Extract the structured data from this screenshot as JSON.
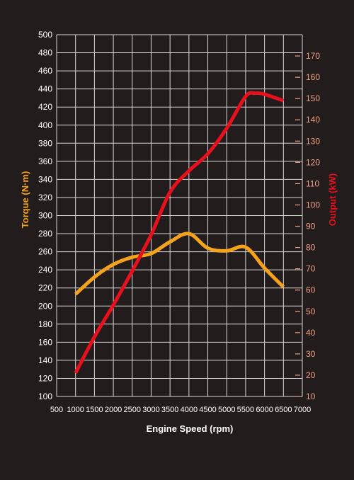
{
  "chart_data": {
    "type": "line",
    "xlabel": "Engine Speed (rpm)",
    "ylabel_left": "Torque (N·m)",
    "ylabel_right": "Output (kW)",
    "xlim": [
      500,
      7000
    ],
    "ylim_left": [
      100,
      500
    ],
    "ylim_right": [
      10,
      180
    ],
    "x_ticks": [
      500,
      1000,
      1500,
      2000,
      2500,
      3000,
      3500,
      4000,
      4500,
      5000,
      5500,
      6000,
      6500,
      7000
    ],
    "y_ticks_left": [
      100,
      120,
      140,
      160,
      180,
      200,
      220,
      240,
      260,
      280,
      300,
      320,
      340,
      360,
      380,
      400,
      420,
      440,
      460,
      480,
      500
    ],
    "y_ticks_right": [
      10,
      20,
      30,
      40,
      50,
      60,
      70,
      80,
      90,
      100,
      110,
      120,
      130,
      140,
      150,
      160,
      170
    ],
    "grid": true,
    "series": [
      {
        "name": "Torque (N·m)",
        "axis": "left",
        "color": "#f5a31a",
        "x": [
          1000,
          1500,
          2000,
          2500,
          3000,
          3500,
          4000,
          4500,
          5000,
          5500,
          6000,
          6500
        ],
        "values": [
          213,
          232,
          246,
          254,
          258,
          271,
          280,
          264,
          261,
          265,
          242,
          221
        ]
      },
      {
        "name": "Output (kW)",
        "axis": "right",
        "color": "#e8101c",
        "x": [
          1000,
          1500,
          2000,
          2500,
          3000,
          3500,
          4000,
          4500,
          5000,
          5500,
          5750,
          6000,
          6500
        ],
        "values": [
          21,
          38,
          53,
          69,
          86,
          106,
          116,
          124,
          136,
          151,
          152.5,
          152,
          149
        ]
      }
    ]
  }
}
